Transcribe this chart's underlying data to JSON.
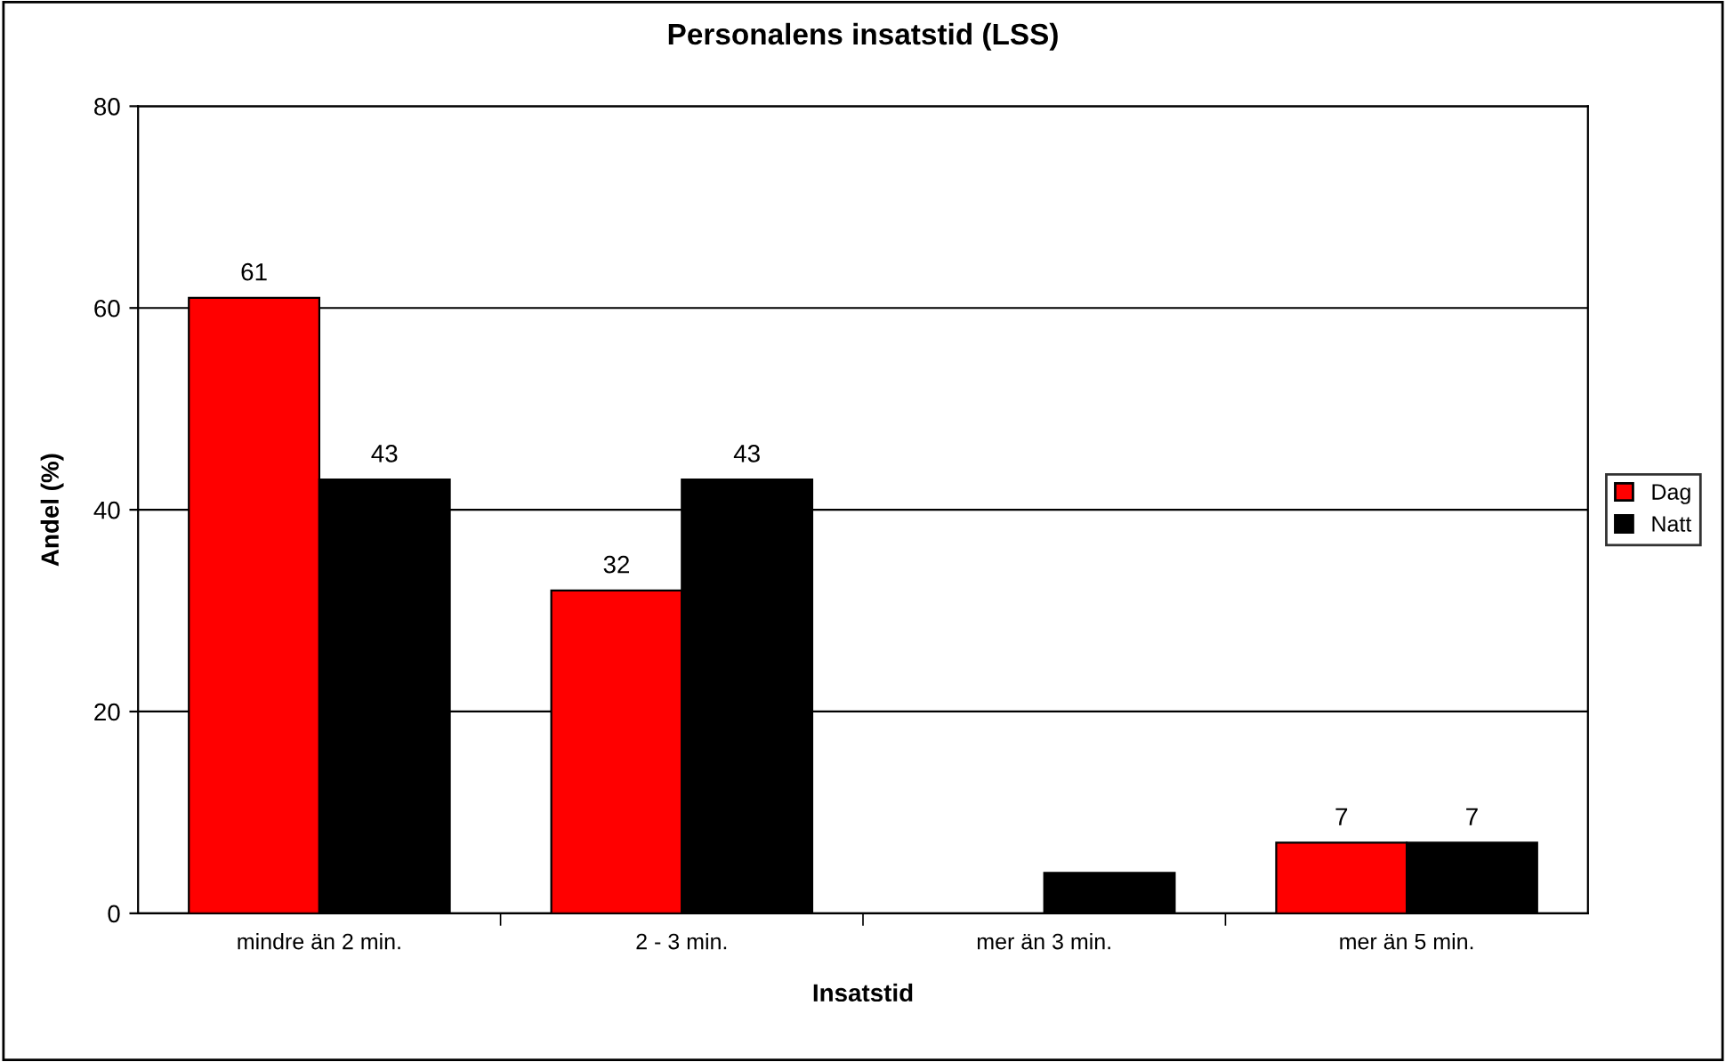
{
  "chart_data": {
    "type": "bar",
    "title": "Personalens insatstid (LSS)",
    "xlabel": "Insatstid",
    "ylabel": "Andel (%)",
    "categories": [
      "mindre än 2 min.",
      "2 - 3 min.",
      "mer än 3 min.",
      "mer än 5 min."
    ],
    "series": [
      {
        "name": "Dag",
        "color": "#ff0000",
        "values": [
          61,
          32,
          null,
          7
        ],
        "value_labels": [
          "61",
          "32",
          null,
          "7"
        ]
      },
      {
        "name": "Natt",
        "color": "#000000",
        "values": [
          43,
          43,
          4,
          7
        ],
        "value_labels": [
          "43",
          "43",
          null,
          "7"
        ]
      }
    ],
    "ylim": [
      0,
      80
    ],
    "yticks": [
      0,
      20,
      40,
      60,
      80
    ],
    "grid": "y",
    "legend": "right"
  }
}
